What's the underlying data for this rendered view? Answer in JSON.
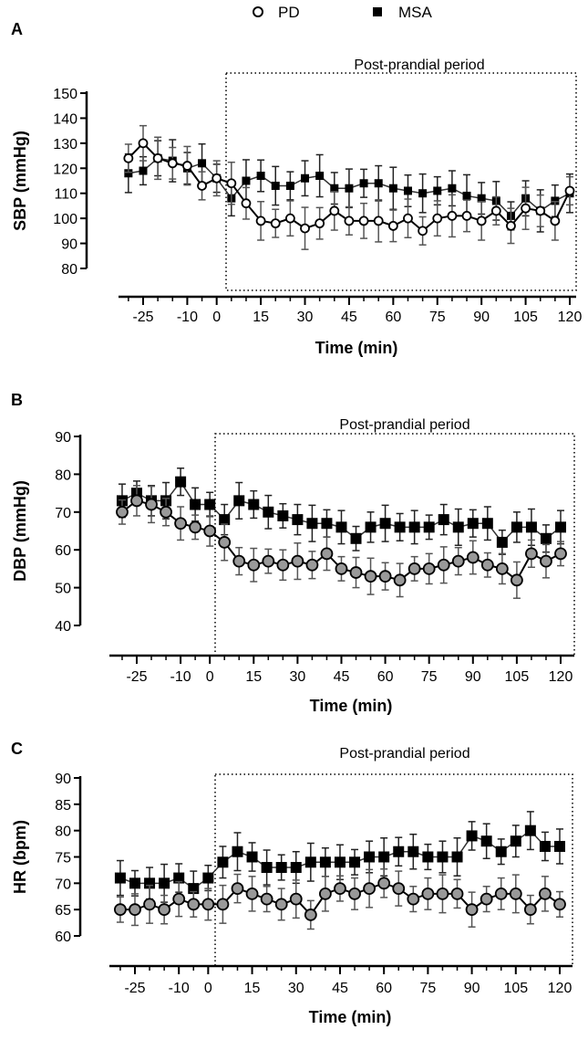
{
  "chart_data": [
    {
      "type": "line",
      "panel": "A",
      "title": "Post-prandial period",
      "xlabel": "Time (min)",
      "ylabel": "SBP (mmHg)",
      "x": [
        -30,
        -25,
        -20,
        -15,
        -10,
        -5,
        0,
        5,
        10,
        15,
        20,
        25,
        30,
        35,
        40,
        45,
        50,
        55,
        60,
        65,
        70,
        75,
        80,
        85,
        90,
        95,
        100,
        105,
        110,
        115,
        120
      ],
      "xticks": [
        "-25",
        "-10",
        "0",
        "15",
        "30",
        "45",
        "60",
        "75",
        "90",
        "105",
        "120"
      ],
      "xtick_values": [
        -25,
        -10,
        0,
        15,
        30,
        45,
        60,
        75,
        90,
        105,
        120
      ],
      "yticks": [
        "80",
        "90",
        "100",
        "110",
        "120",
        "130",
        "140",
        "150"
      ],
      "ylim": [
        80,
        150
      ],
      "error": 7,
      "series": [
        {
          "name": "PD",
          "values": [
            124,
            130,
            124,
            122,
            121,
            113,
            116,
            114,
            106,
            99,
            98,
            100,
            96,
            98,
            103,
            99,
            99,
            99,
            97,
            100,
            95,
            100,
            101,
            101,
            99,
            103,
            97,
            104,
            103,
            99,
            111
          ]
        },
        {
          "name": "MSA",
          "values": [
            118,
            119,
            124,
            123,
            120,
            122,
            116,
            108,
            115,
            117,
            113,
            113,
            116,
            117,
            112,
            112,
            114,
            114,
            112,
            111,
            110,
            111,
            112,
            109,
            108,
            107,
            101,
            108,
            103,
            107,
            110
          ]
        }
      ]
    },
    {
      "type": "line",
      "panel": "B",
      "title": "Post-prandial period",
      "xlabel": "Time (min)",
      "ylabel": "DBP (mmHg)",
      "x": [
        -30,
        -25,
        -20,
        -15,
        -10,
        -5,
        0,
        5,
        10,
        15,
        20,
        25,
        30,
        35,
        40,
        45,
        50,
        55,
        60,
        65,
        70,
        75,
        80,
        85,
        90,
        95,
        100,
        105,
        110,
        115,
        120
      ],
      "xticks": [
        "-25",
        "-10",
        "0",
        "15",
        "30",
        "45",
        "60",
        "75",
        "90",
        "105",
        "120"
      ],
      "xtick_values": [
        -25,
        -10,
        0,
        15,
        30,
        45,
        60,
        75,
        90,
        105,
        120
      ],
      "yticks": [
        "40",
        "50",
        "60",
        "70",
        "80",
        "90"
      ],
      "ylim": [
        40,
        90
      ],
      "error": 4,
      "series": [
        {
          "name": "PD",
          "values": [
            70,
            73,
            72,
            70,
            67,
            66,
            65,
            62,
            57,
            56,
            57,
            56,
            57,
            56,
            59,
            55,
            54,
            53,
            53,
            52,
            55,
            55,
            56,
            57,
            58,
            56,
            55,
            52,
            59,
            57,
            59
          ]
        },
        {
          "name": "MSA",
          "values": [
            73,
            75,
            73,
            73,
            78,
            72,
            72,
            68,
            73,
            72,
            70,
            69,
            68,
            67,
            67,
            66,
            63,
            66,
            67,
            66,
            66,
            66,
            68,
            66,
            67,
            67,
            62,
            66,
            66,
            63,
            66
          ]
        }
      ]
    },
    {
      "type": "line",
      "panel": "C",
      "title": "Post-prandial period",
      "xlabel": "Time (min)",
      "ylabel": "HR (bpm)",
      "x": [
        -30,
        -25,
        -20,
        -15,
        -10,
        -5,
        0,
        5,
        10,
        15,
        20,
        25,
        30,
        35,
        40,
        45,
        50,
        55,
        60,
        65,
        70,
        75,
        80,
        85,
        90,
        95,
        100,
        105,
        110,
        115,
        120
      ],
      "xticks": [
        "-25",
        "-10",
        "0",
        "15",
        "30",
        "45",
        "60",
        "75",
        "90",
        "105",
        "120"
      ],
      "xtick_values": [
        -25,
        -10,
        0,
        15,
        30,
        45,
        60,
        75,
        90,
        105,
        120
      ],
      "yticks": [
        "60",
        "65",
        "70",
        "75",
        "80",
        "85",
        "90"
      ],
      "ylim": [
        60,
        90
      ],
      "error": 3,
      "series": [
        {
          "name": "PD",
          "values": [
            65,
            65,
            66,
            65,
            67,
            66,
            66,
            66,
            69,
            68,
            67,
            66,
            67,
            64,
            68,
            69,
            68,
            69,
            70,
            69,
            67,
            68,
            68,
            68,
            65,
            67,
            68,
            68,
            65,
            68,
            66
          ]
        },
        {
          "name": "MSA",
          "values": [
            71,
            70,
            70,
            70,
            71,
            69,
            71,
            74,
            76,
            75,
            73,
            73,
            73,
            74,
            74,
            74,
            74,
            75,
            75,
            76,
            76,
            75,
            75,
            75,
            79,
            78,
            76,
            78,
            80,
            77,
            77
          ]
        }
      ]
    }
  ],
  "legend": {
    "items": [
      "PD",
      "MSA"
    ],
    "placement": "top-center"
  }
}
